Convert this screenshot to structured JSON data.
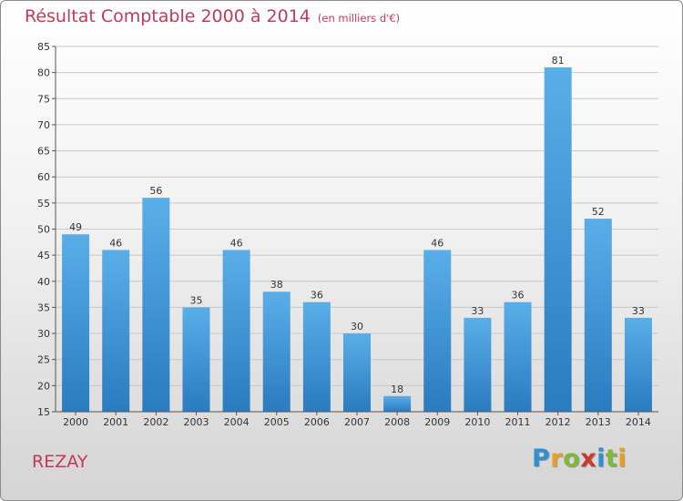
{
  "title": "Résultat Comptable 2000 à 2014",
  "subtitle": "(en milliers d'€)",
  "commune": "REZAY",
  "logo": {
    "letters": [
      "P",
      "r",
      "o",
      "x",
      "i",
      "t",
      "i"
    ]
  },
  "colors": {
    "bar_top": "#5aaee8",
    "bar_bottom": "#2a7bbf",
    "title": "#c23a56"
  },
  "chart_data": {
    "type": "bar",
    "title": "Résultat Comptable 2000 à 2014",
    "ylabel": "en milliers d'€",
    "xlabel": "",
    "categories": [
      "2000",
      "2001",
      "2002",
      "2003",
      "2004",
      "2005",
      "2006",
      "2007",
      "2008",
      "2009",
      "2010",
      "2011",
      "2012",
      "2013",
      "2014"
    ],
    "values": [
      49,
      46,
      56,
      35,
      46,
      38,
      36,
      30,
      18,
      46,
      33,
      36,
      81,
      52,
      33
    ],
    "ylim": [
      15,
      85
    ],
    "yticks": [
      15,
      20,
      25,
      30,
      35,
      40,
      45,
      50,
      55,
      60,
      65,
      70,
      75,
      80,
      85
    ],
    "grid": true
  }
}
